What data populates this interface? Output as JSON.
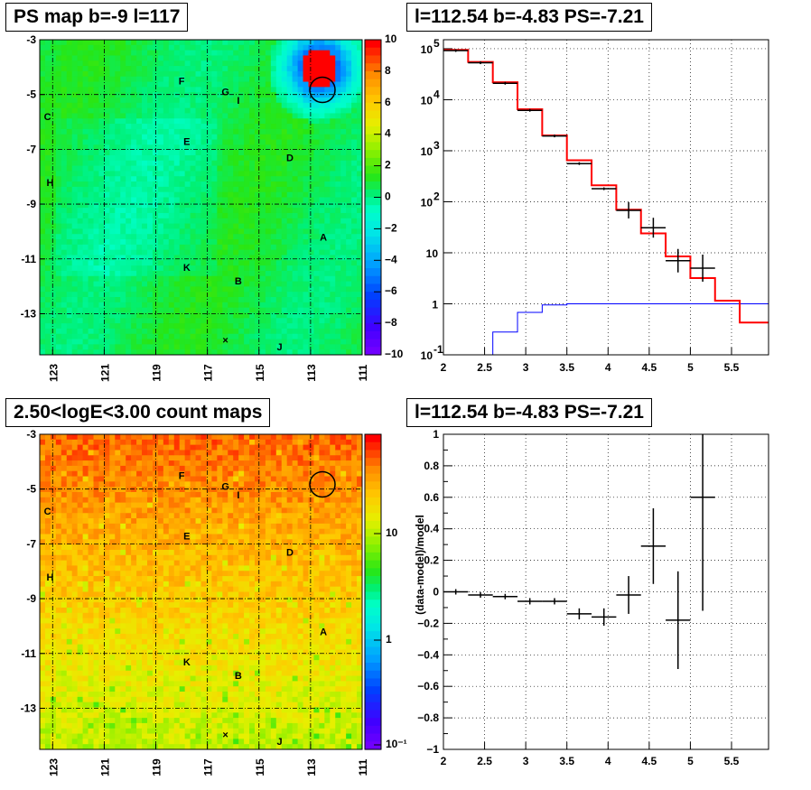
{
  "panels": {
    "top_left_title": "PS map b=-9 l=117",
    "top_right_title": "l=112.54 b=-4.83 PS=-7.21",
    "bottom_left_title": "2.50<logE<3.00 count maps",
    "bottom_right_title": "l=112.54 b=-4.83 PS=-7.21"
  },
  "colors": {
    "data": "#000000",
    "model": "#ff0000",
    "background_model": "#0000ff"
  },
  "chart_data": [
    {
      "type": "heatmap",
      "title": "PS map b=-9 l=117",
      "x_tick_labels": [
        "123",
        "121",
        "119",
        "117",
        "115",
        "113",
        "111"
      ],
      "y_tick_labels": [
        "-3",
        "-5",
        "-7",
        "-9",
        "-11",
        "-13"
      ],
      "colorbar_tick_labels": [
        "10",
        "8",
        "6",
        "4",
        "2",
        "0",
        "−2",
        "−4",
        "−6",
        "−8",
        "−10"
      ],
      "zlim": [
        -10,
        10
      ],
      "source_labels": [
        "F",
        "G",
        "I",
        "C",
        "E",
        "D",
        "H",
        "A",
        "K",
        "B",
        "J"
      ],
      "marker_circle": {
        "l": 112.54,
        "b": -4.83
      },
      "grid": true
    },
    {
      "type": "line",
      "title": "l=112.54 b=-4.83 PS=-7.21",
      "x_tick_labels": [
        "2",
        "2.5",
        "3",
        "3.5",
        "4",
        "4.5",
        "5",
        "5.5"
      ],
      "y_tick_labels": [
        "10^5",
        "10^4",
        "10^3",
        "10^2",
        "10",
        "1",
        "10^-1"
      ],
      "yscale": "log",
      "xlim": [
        2.0,
        5.95
      ],
      "ylim": [
        0.1,
        150000
      ],
      "grid": true,
      "series": [
        {
          "style": "step",
          "edges": [
            2.0,
            2.3,
            2.6,
            2.9,
            3.2,
            3.5,
            3.8,
            4.1,
            4.4,
            4.7,
            5.0,
            5.3,
            5.6,
            5.95
          ],
          "values": [
            95000,
            55000,
            22000,
            6500,
            2000,
            650,
            210,
            70,
            24,
            8.5,
            3.2,
            1.15,
            0.43
          ]
        },
        {
          "style": "step",
          "edges": [
            2.6,
            2.9,
            3.2,
            3.5,
            5.95
          ],
          "values": [
            0.28,
            0.68,
            0.95,
            1.0
          ]
        },
        {
          "style": "points",
          "x": [
            2.15,
            2.45,
            2.75,
            3.05,
            3.35,
            3.65,
            3.95,
            4.25,
            4.55,
            4.85,
            5.15
          ],
          "y": [
            92000,
            53000,
            21000,
            6200,
            1950,
            560,
            180,
            68,
            31,
            7.0,
            5.0
          ]
        }
      ]
    },
    {
      "type": "heatmap",
      "title": "2.50<logE<3.00 count maps",
      "x_tick_labels": [
        "123",
        "121",
        "119",
        "117",
        "115",
        "113",
        "111"
      ],
      "y_tick_labels": [
        "-3",
        "-5",
        "-7",
        "-9",
        "-11",
        "-13"
      ],
      "colorbar_tick_labels": [
        "10",
        "1",
        "10⁻¹"
      ],
      "zscale": "log",
      "source_labels": [
        "F",
        "G",
        "I",
        "C",
        "E",
        "D",
        "H",
        "A",
        "K",
        "B",
        "J"
      ],
      "marker_circle": {
        "l": 112.54,
        "b": -4.83
      },
      "grid": true
    },
    {
      "type": "scatter",
      "title": "l=112.54 b=-4.83 PS=-7.21",
      "ylabel": "(data-model)/model",
      "x_tick_labels": [
        "2",
        "2.5",
        "3",
        "3.5",
        "4",
        "4.5",
        "5",
        "5.5"
      ],
      "y_tick_labels": [
        "1",
        "0.8",
        "0.6",
        "0.4",
        "0.2",
        "0",
        "−0.2",
        "−0.4",
        "−0.6",
        "−0.8",
        "−1"
      ],
      "xlim": [
        2.0,
        5.95
      ],
      "ylim": [
        -1.0,
        1.0
      ],
      "grid": true,
      "x": [
        2.15,
        2.45,
        2.75,
        3.05,
        3.35,
        3.65,
        3.95,
        4.25,
        4.55,
        4.85,
        5.15
      ],
      "y": [
        0.0,
        -0.02,
        -0.03,
        -0.06,
        -0.06,
        -0.14,
        -0.16,
        -0.02,
        0.29,
        -0.18,
        0.6
      ],
      "yerr": [
        0.01,
        0.01,
        0.01,
        0.02,
        0.02,
        0.035,
        0.055,
        0.12,
        0.24,
        0.31,
        0.72
      ]
    }
  ]
}
